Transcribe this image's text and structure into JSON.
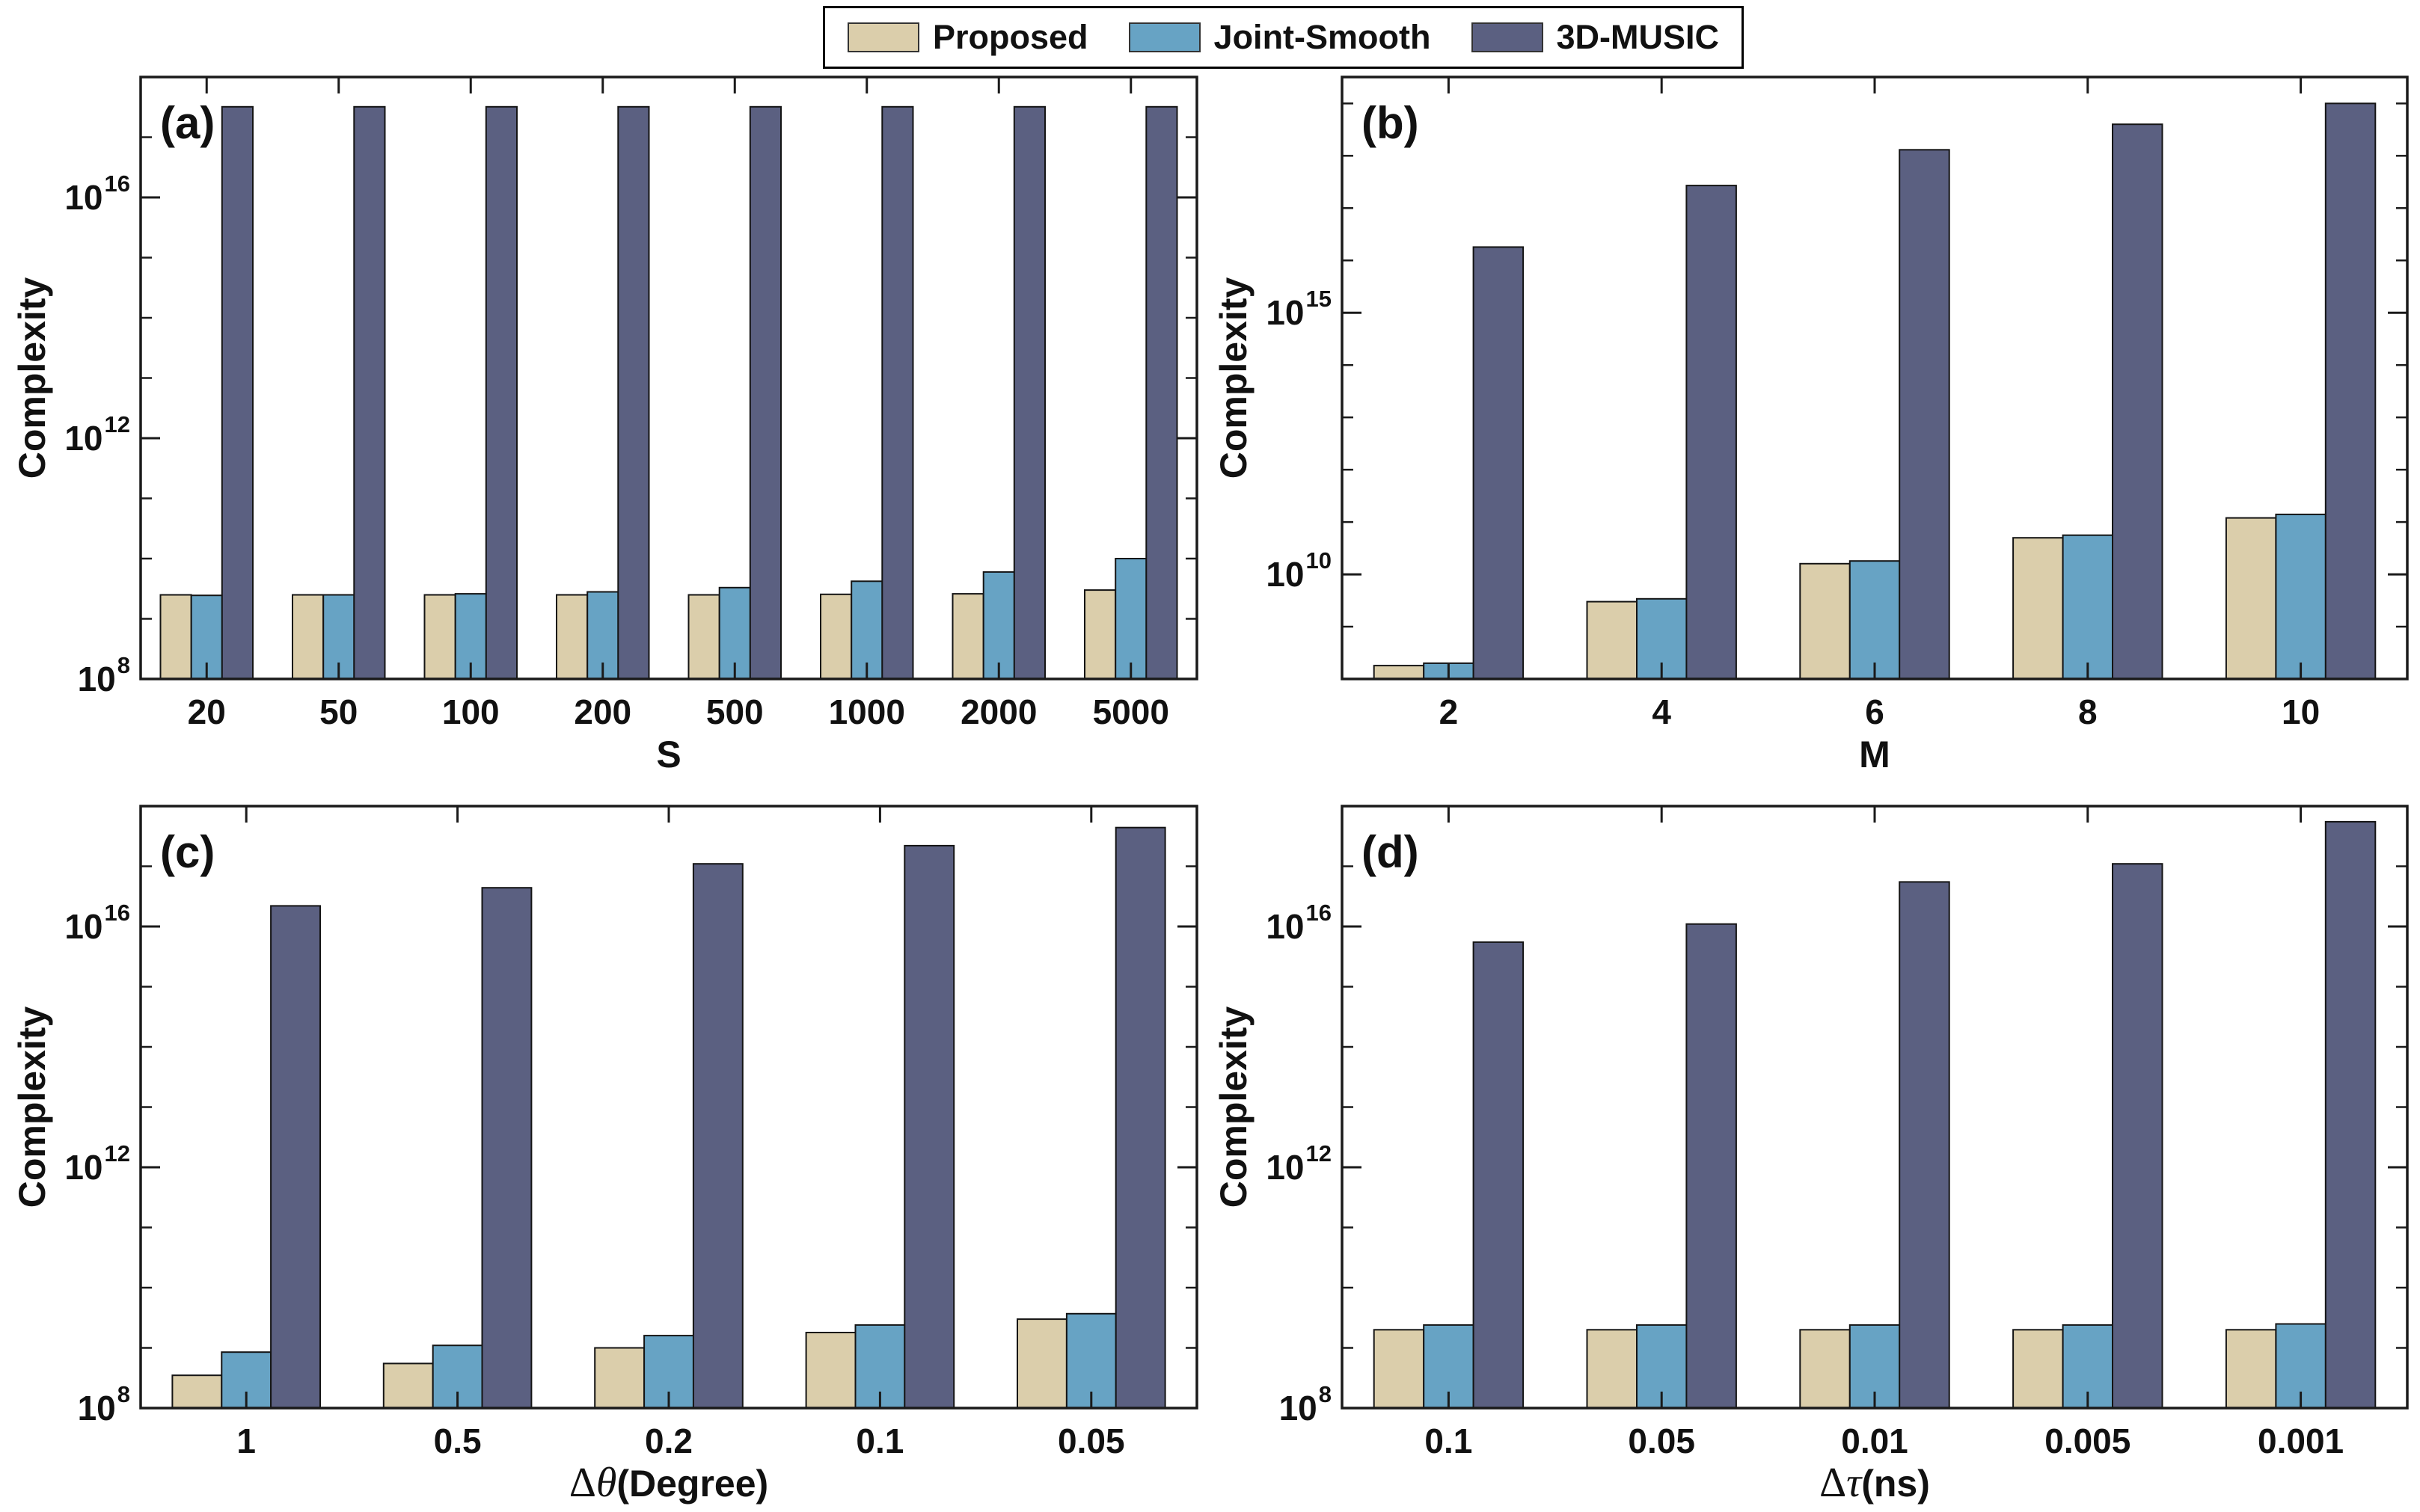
{
  "figure": {
    "background": "#ffffff",
    "axis_color": "#1a1a1a",
    "text_color": "#111111",
    "bar_edge_color": "#141414"
  },
  "legend": {
    "position": "top-center",
    "items": [
      {
        "label": "Proposed",
        "color": "#DBCEAB"
      },
      {
        "label": "Joint-Smooth",
        "color": "#67A3C4"
      },
      {
        "label": "3D-MUSIC",
        "color": "#5B6081"
      }
    ]
  },
  "chart_data": [
    {
      "id": "a",
      "type": "bar",
      "panel_label": "(a)",
      "xlabel": {
        "prefix": "",
        "symbol": "",
        "rest": "S"
      },
      "ylabel": "Complexity",
      "yscale": "log",
      "grid": false,
      "ylim": [
        100000000.0,
        1e+18
      ],
      "ytick_exponents": [
        8,
        12,
        16
      ],
      "categories": [
        "20",
        "50",
        "100",
        "200",
        "500",
        "1000",
        "2000",
        "5000"
      ],
      "series": [
        {
          "name": "Proposed",
          "values": [
            2500000000.0,
            2500000000.0,
            2500000000.0,
            2500000000.0,
            2500000000.0,
            2550000000.0,
            2600000000.0,
            3000000000.0
          ]
        },
        {
          "name": "Joint-Smooth",
          "values": [
            2450000000.0,
            2500000000.0,
            2600000000.0,
            2800000000.0,
            3300000000.0,
            4200000000.0,
            6000000000.0,
            10000000000.0
          ]
        },
        {
          "name": "3D-MUSIC",
          "values": [
            3.2e+17,
            3.2e+17,
            3.2e+17,
            3.2e+17,
            3.2e+17,
            3.2e+17,
            3.2e+17,
            3.2e+17
          ]
        }
      ]
    },
    {
      "id": "b",
      "type": "bar",
      "panel_label": "(b)",
      "xlabel": {
        "prefix": "",
        "symbol": "",
        "rest": "M"
      },
      "ylabel": "Complexity",
      "yscale": "log",
      "grid": false,
      "ylim": [
        100000000.0,
        3.2e+19
      ],
      "ytick_exponents": [
        10,
        15
      ],
      "categories": [
        "2",
        "4",
        "6",
        "8",
        "10"
      ],
      "series": [
        {
          "name": "Proposed",
          "values": [
            180000000.0,
            3000000000.0,
            16000000000.0,
            50000000000.0,
            120000000000.0
          ]
        },
        {
          "name": "Joint-Smooth",
          "values": [
            200000000.0,
            3400000000.0,
            18000000000.0,
            56000000000.0,
            140000000000.0
          ]
        },
        {
          "name": "3D-MUSIC",
          "values": [
            1.8e+16,
            2.7e+17,
            1.3e+18,
            4e+18,
            1e+19
          ]
        }
      ]
    },
    {
      "id": "c",
      "type": "bar",
      "panel_label": "(c)",
      "xlabel": {
        "prefix": "Δ",
        "symbol": "θ",
        "rest": "(Degree)"
      },
      "ylabel": "Complexity",
      "yscale": "log",
      "grid": false,
      "ylim": [
        100000000.0,
        1e+18
      ],
      "ytick_exponents": [
        8,
        12,
        16
      ],
      "categories": [
        "1",
        "0.5",
        "0.2",
        "0.1",
        "0.05"
      ],
      "series": [
        {
          "name": "Proposed",
          "values": [
            350000000.0,
            550000000.0,
            1000000000.0,
            1800000000.0,
            3000000000.0
          ]
        },
        {
          "name": "Joint-Smooth",
          "values": [
            850000000.0,
            1100000000.0,
            1600000000.0,
            2400000000.0,
            3700000000.0
          ]
        },
        {
          "name": "3D-MUSIC",
          "values": [
            2.2e+16,
            4.4e+16,
            1.1e+17,
            2.2e+17,
            4.4e+17
          ]
        }
      ]
    },
    {
      "id": "d",
      "type": "bar",
      "panel_label": "(d)",
      "xlabel": {
        "prefix": "Δ",
        "symbol": "τ",
        "rest": "(ns)"
      },
      "ylabel": "Complexity",
      "yscale": "log",
      "grid": false,
      "ylim": [
        100000000.0,
        1e+18
      ],
      "ytick_exponents": [
        8,
        12,
        16
      ],
      "categories": [
        "0.1",
        "0.05",
        "0.01",
        "0.005",
        "0.001"
      ],
      "series": [
        {
          "name": "Proposed",
          "values": [
            2000000000.0,
            2000000000.0,
            2000000000.0,
            2000000000.0,
            2000000000.0
          ]
        },
        {
          "name": "Joint-Smooth",
          "values": [
            2400000000.0,
            2400000000.0,
            2400000000.0,
            2400000000.0,
            2500000000.0
          ]
        },
        {
          "name": "3D-MUSIC",
          "values": [
            5500000000000000.0,
            1.1e+16,
            5.5e+16,
            1.1e+17,
            5.5e+17
          ]
        }
      ]
    }
  ]
}
